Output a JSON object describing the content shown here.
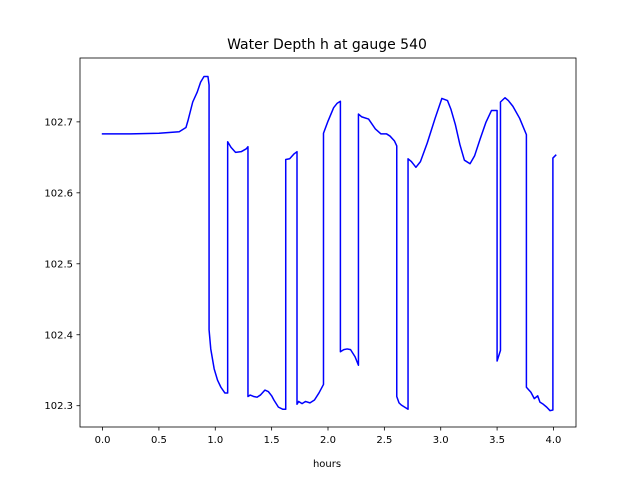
{
  "chart_data": {
    "type": "line",
    "title": "Water Depth h at gauge 540",
    "xlabel": "hours",
    "ylabel": "",
    "xlim": [
      -0.2,
      4.2
    ],
    "ylim": [
      102.27,
      102.79
    ],
    "xticks": [
      0.0,
      0.5,
      1.0,
      1.5,
      2.0,
      2.5,
      3.0,
      3.5,
      4.0
    ],
    "xtick_labels": [
      "0.0",
      "0.5",
      "1.0",
      "1.5",
      "2.0",
      "2.5",
      "3.0",
      "3.5",
      "4.0"
    ],
    "yticks": [
      102.3,
      102.4,
      102.5,
      102.6,
      102.7
    ],
    "ytick_labels": [
      "102.3",
      "102.4",
      "102.5",
      "102.6",
      "102.7"
    ],
    "grid": false,
    "series": [
      {
        "color": "#0000ff",
        "x": [
          0.0,
          0.25,
          0.5,
          0.68,
          0.74,
          0.76,
          0.8,
          0.84,
          0.87,
          0.9,
          0.935,
          0.945,
          0.945,
          0.96,
          0.99,
          1.02,
          1.05,
          1.085,
          1.11,
          1.11,
          1.14,
          1.18,
          1.23,
          1.275,
          1.29,
          1.29,
          1.31,
          1.34,
          1.37,
          1.4,
          1.44,
          1.47,
          1.5,
          1.52,
          1.56,
          1.6,
          1.625,
          1.625,
          1.66,
          1.7,
          1.725,
          1.725,
          1.74,
          1.77,
          1.8,
          1.84,
          1.88,
          1.92,
          1.96,
          1.96,
          2.0,
          2.05,
          2.08,
          2.11,
          2.11,
          2.14,
          2.17,
          2.2,
          2.24,
          2.27,
          2.27,
          2.3,
          2.36,
          2.42,
          2.47,
          2.52,
          2.55,
          2.59,
          2.61,
          2.61,
          2.63,
          2.65,
          2.68,
          2.71,
          2.71,
          2.74,
          2.76,
          2.78,
          2.82,
          2.88,
          2.95,
          3.01,
          3.06,
          3.09,
          3.13,
          3.17,
          3.21,
          3.26,
          3.3,
          3.35,
          3.4,
          3.45,
          3.5,
          3.5,
          3.53,
          3.53,
          3.57,
          3.6,
          3.64,
          3.7,
          3.76,
          3.76,
          3.8,
          3.83,
          3.86,
          3.88,
          3.91,
          3.94,
          3.97,
          3.995,
          3.995,
          4.02
        ],
        "y": [
          102.683,
          102.683,
          102.684,
          102.686,
          102.692,
          102.703,
          102.728,
          102.742,
          102.756,
          102.764,
          102.764,
          102.752,
          102.407,
          102.38,
          102.352,
          102.336,
          102.326,
          102.318,
          102.318,
          102.672,
          102.664,
          102.657,
          102.658,
          102.662,
          102.665,
          102.313,
          102.315,
          102.313,
          102.312,
          102.315,
          102.322,
          102.32,
          102.314,
          102.308,
          102.298,
          102.295,
          102.295,
          102.647,
          102.648,
          102.655,
          102.658,
          102.302,
          102.306,
          102.303,
          102.306,
          102.304,
          102.308,
          102.318,
          102.33,
          102.684,
          102.701,
          102.72,
          102.726,
          102.729,
          102.376,
          102.379,
          102.38,
          102.379,
          102.369,
          102.357,
          102.711,
          102.707,
          102.704,
          102.69,
          102.683,
          102.683,
          102.68,
          102.673,
          102.666,
          102.313,
          102.304,
          102.301,
          102.298,
          102.295,
          102.648,
          102.644,
          102.64,
          102.636,
          102.644,
          102.67,
          102.705,
          102.733,
          102.73,
          102.718,
          102.696,
          102.668,
          102.646,
          102.641,
          102.652,
          102.676,
          102.699,
          102.716,
          102.716,
          102.363,
          102.378,
          102.728,
          102.734,
          102.73,
          102.722,
          102.705,
          102.682,
          102.326,
          102.319,
          102.31,
          102.314,
          102.305,
          102.302,
          102.298,
          102.293,
          102.294,
          102.649,
          102.653
        ]
      }
    ]
  }
}
